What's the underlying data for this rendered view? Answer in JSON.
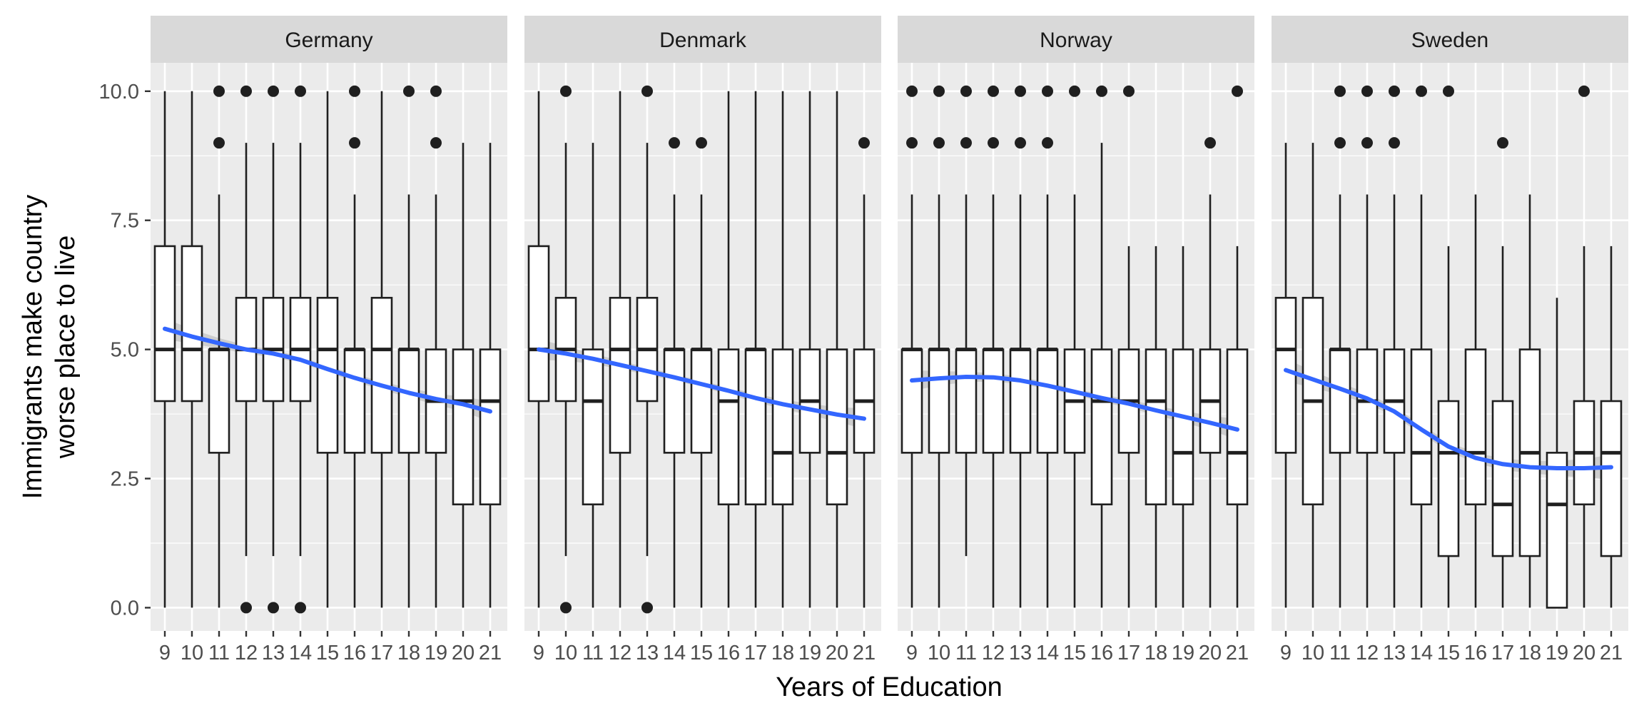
{
  "chart_data": {
    "type": "box",
    "xlabel": "Years of Education",
    "ylabel": [
      "Immigrants make country",
      "worse place to live"
    ],
    "ylim": [
      -0.45,
      10.55
    ],
    "y_ticks": [
      "0.0",
      "2.5",
      "5.0",
      "7.5",
      "10.0"
    ],
    "y_tick_values": [
      0,
      2.5,
      5,
      7.5,
      10
    ],
    "categories": [
      "9",
      "10",
      "11",
      "12",
      "13",
      "14",
      "15",
      "16",
      "17",
      "18",
      "19",
      "20",
      "21"
    ],
    "grid": true,
    "colors": {
      "panel": "#ebebeb",
      "strip": "#d9d9d9",
      "grid": "#ffffff",
      "box": "#1f1f1f",
      "trend": "#3366ff",
      "band": "#c8c8c8"
    },
    "panels": [
      {
        "name": "Germany",
        "boxes": [
          {
            "x": "9",
            "min": 0,
            "q1": 4,
            "median": 5,
            "q3": 7,
            "max": 10,
            "outliers": []
          },
          {
            "x": "10",
            "min": 0,
            "q1": 4,
            "median": 5,
            "q3": 7,
            "max": 10,
            "outliers": []
          },
          {
            "x": "11",
            "min": 0,
            "q1": 3,
            "median": 5,
            "q3": 5,
            "max": 8,
            "outliers": [
              9,
              10
            ]
          },
          {
            "x": "12",
            "min": 1,
            "q1": 4,
            "median": 5,
            "q3": 6,
            "max": 9,
            "outliers": [
              0,
              10
            ]
          },
          {
            "x": "13",
            "min": 1,
            "q1": 4,
            "median": 5,
            "q3": 6,
            "max": 9,
            "outliers": [
              0,
              10
            ]
          },
          {
            "x": "14",
            "min": 1,
            "q1": 4,
            "median": 5,
            "q3": 6,
            "max": 9,
            "outliers": [
              0,
              10
            ]
          },
          {
            "x": "15",
            "min": 0,
            "q1": 3,
            "median": 5,
            "q3": 6,
            "max": 10,
            "outliers": []
          },
          {
            "x": "16",
            "min": 0,
            "q1": 3,
            "median": 5,
            "q3": 5,
            "max": 8,
            "outliers": [
              9,
              10
            ]
          },
          {
            "x": "17",
            "min": 0,
            "q1": 3,
            "median": 5,
            "q3": 6,
            "max": 10,
            "outliers": []
          },
          {
            "x": "18",
            "min": 0,
            "q1": 3,
            "median": 5,
            "q3": 5,
            "max": 8,
            "outliers": [
              10
            ]
          },
          {
            "x": "19",
            "min": 0,
            "q1": 3,
            "median": 4,
            "q3": 5,
            "max": 8,
            "outliers": [
              9,
              10
            ]
          },
          {
            "x": "20",
            "min": 0,
            "q1": 2,
            "median": 4,
            "q3": 5,
            "max": 9,
            "outliers": []
          },
          {
            "x": "21",
            "min": 0,
            "q1": 2,
            "median": 4,
            "q3": 5,
            "max": 9,
            "outliers": []
          }
        ],
        "trend": [
          [
            9,
            5.4
          ],
          [
            10,
            5.25
          ],
          [
            11,
            5.12
          ],
          [
            12,
            5.0
          ],
          [
            13,
            4.92
          ],
          [
            14,
            4.8
          ],
          [
            15,
            4.62
          ],
          [
            16,
            4.45
          ],
          [
            17,
            4.3
          ],
          [
            18,
            4.16
          ],
          [
            19,
            4.04
          ],
          [
            20,
            3.94
          ],
          [
            21,
            3.8
          ]
        ],
        "band": [
          0.2,
          0.14,
          0.1,
          0.08,
          0.07,
          0.06,
          0.06,
          0.07,
          0.08,
          0.09,
          0.11,
          0.14,
          0.2
        ]
      },
      {
        "name": "Denmark",
        "boxes": [
          {
            "x": "9",
            "min": 0,
            "q1": 4,
            "median": 5,
            "q3": 7,
            "max": 10,
            "outliers": []
          },
          {
            "x": "10",
            "min": 1,
            "q1": 4,
            "median": 5,
            "q3": 6,
            "max": 9,
            "outliers": [
              0,
              10
            ]
          },
          {
            "x": "11",
            "min": 0,
            "q1": 2,
            "median": 4,
            "q3": 5,
            "max": 9,
            "outliers": []
          },
          {
            "x": "12",
            "min": 0,
            "q1": 3,
            "median": 5,
            "q3": 6,
            "max": 10,
            "outliers": []
          },
          {
            "x": "13",
            "min": 1,
            "q1": 4,
            "median": 5,
            "q3": 6,
            "max": 9,
            "outliers": [
              0,
              10
            ]
          },
          {
            "x": "14",
            "min": 0,
            "q1": 3,
            "median": 5,
            "q3": 5,
            "max": 8,
            "outliers": [
              9
            ]
          },
          {
            "x": "15",
            "min": 0,
            "q1": 3,
            "median": 5,
            "q3": 5,
            "max": 8,
            "outliers": [
              9
            ]
          },
          {
            "x": "16",
            "min": 0,
            "q1": 2,
            "median": 4,
            "q3": 5,
            "max": 10,
            "outliers": []
          },
          {
            "x": "17",
            "min": 0,
            "q1": 2,
            "median": 5,
            "q3": 5,
            "max": 10,
            "outliers": []
          },
          {
            "x": "18",
            "min": 0,
            "q1": 2,
            "median": 3,
            "q3": 5,
            "max": 10,
            "outliers": []
          },
          {
            "x": "19",
            "min": 0,
            "q1": 3,
            "median": 4,
            "q3": 5,
            "max": 10,
            "outliers": []
          },
          {
            "x": "20",
            "min": 0,
            "q1": 2,
            "median": 3,
            "q3": 5,
            "max": 10,
            "outliers": []
          },
          {
            "x": "21",
            "min": 0,
            "q1": 3,
            "median": 4,
            "q3": 5,
            "max": 8,
            "outliers": [
              9
            ]
          }
        ],
        "trend": [
          [
            9,
            5.0
          ],
          [
            10,
            4.92
          ],
          [
            11,
            4.82
          ],
          [
            12,
            4.7
          ],
          [
            13,
            4.58
          ],
          [
            14,
            4.46
          ],
          [
            15,
            4.33
          ],
          [
            16,
            4.2
          ],
          [
            17,
            4.06
          ],
          [
            18,
            3.94
          ],
          [
            19,
            3.84
          ],
          [
            20,
            3.74
          ],
          [
            21,
            3.66
          ]
        ],
        "band": [
          0.2,
          0.14,
          0.1,
          0.08,
          0.07,
          0.06,
          0.06,
          0.07,
          0.08,
          0.09,
          0.11,
          0.14,
          0.2
        ]
      },
      {
        "name": "Norway",
        "boxes": [
          {
            "x": "9",
            "min": 0,
            "q1": 3,
            "median": 5,
            "q3": 5,
            "max": 8,
            "outliers": [
              9,
              10
            ]
          },
          {
            "x": "10",
            "min": 0,
            "q1": 3,
            "median": 5,
            "q3": 5,
            "max": 8,
            "outliers": [
              9,
              10
            ]
          },
          {
            "x": "11",
            "min": 1,
            "q1": 3,
            "median": 5,
            "q3": 5,
            "max": 8,
            "outliers": [
              9,
              10
            ]
          },
          {
            "x": "12",
            "min": 0,
            "q1": 3,
            "median": 5,
            "q3": 5,
            "max": 8,
            "outliers": [
              9,
              10
            ]
          },
          {
            "x": "13",
            "min": 0,
            "q1": 3,
            "median": 5,
            "q3": 5,
            "max": 8,
            "outliers": [
              9,
              10
            ]
          },
          {
            "x": "14",
            "min": 0,
            "q1": 3,
            "median": 5,
            "q3": 5,
            "max": 8,
            "outliers": [
              9,
              10
            ]
          },
          {
            "x": "15",
            "min": 0,
            "q1": 3,
            "median": 4,
            "q3": 5,
            "max": 8,
            "outliers": [
              10
            ]
          },
          {
            "x": "16",
            "min": 0,
            "q1": 2,
            "median": 4,
            "q3": 5,
            "max": 9,
            "outliers": [
              10
            ]
          },
          {
            "x": "17",
            "min": 0,
            "q1": 3,
            "median": 4,
            "q3": 5,
            "max": 7,
            "outliers": [
              10
            ]
          },
          {
            "x": "18",
            "min": 0,
            "q1": 2,
            "median": 4,
            "q3": 5,
            "max": 7,
            "outliers": []
          },
          {
            "x": "19",
            "min": 0,
            "q1": 2,
            "median": 3,
            "q3": 5,
            "max": 7,
            "outliers": []
          },
          {
            "x": "20",
            "min": 0,
            "q1": 3,
            "median": 4,
            "q3": 5,
            "max": 8,
            "outliers": [
              9
            ]
          },
          {
            "x": "21",
            "min": 0,
            "q1": 2,
            "median": 3,
            "q3": 5,
            "max": 7,
            "outliers": [
              10
            ]
          }
        ],
        "trend": [
          [
            9,
            4.4
          ],
          [
            10,
            4.44
          ],
          [
            11,
            4.47
          ],
          [
            12,
            4.46
          ],
          [
            13,
            4.4
          ],
          [
            14,
            4.3
          ],
          [
            15,
            4.18
          ],
          [
            16,
            4.06
          ],
          [
            17,
            3.95
          ],
          [
            18,
            3.82
          ],
          [
            19,
            3.7
          ],
          [
            20,
            3.58
          ],
          [
            21,
            3.45
          ]
        ],
        "band": [
          0.2,
          0.14,
          0.1,
          0.08,
          0.07,
          0.06,
          0.06,
          0.07,
          0.08,
          0.09,
          0.11,
          0.14,
          0.2
        ]
      },
      {
        "name": "Sweden",
        "boxes": [
          {
            "x": "9",
            "min": 0,
            "q1": 3,
            "median": 5,
            "q3": 6,
            "max": 9,
            "outliers": []
          },
          {
            "x": "10",
            "min": 0,
            "q1": 2,
            "median": 4,
            "q3": 6,
            "max": 9,
            "outliers": []
          },
          {
            "x": "11",
            "min": 0,
            "q1": 3,
            "median": 5,
            "q3": 5,
            "max": 8,
            "outliers": [
              9,
              10
            ]
          },
          {
            "x": "12",
            "min": 0,
            "q1": 3,
            "median": 4,
            "q3": 5,
            "max": 8,
            "outliers": [
              9,
              10
            ]
          },
          {
            "x": "13",
            "min": 0,
            "q1": 3,
            "median": 4,
            "q3": 5,
            "max": 8,
            "outliers": [
              9,
              10
            ]
          },
          {
            "x": "14",
            "min": 0,
            "q1": 2,
            "median": 3,
            "q3": 5,
            "max": 8,
            "outliers": [
              10
            ]
          },
          {
            "x": "15",
            "min": 0,
            "q1": 1,
            "median": 3,
            "q3": 4,
            "max": 7,
            "outliers": [
              10
            ]
          },
          {
            "x": "16",
            "min": 0,
            "q1": 2,
            "median": 3,
            "q3": 5,
            "max": 8,
            "outliers": []
          },
          {
            "x": "17",
            "min": 0,
            "q1": 1,
            "median": 2,
            "q3": 4,
            "max": 7,
            "outliers": [
              9
            ]
          },
          {
            "x": "18",
            "min": 0,
            "q1": 1,
            "median": 3,
            "q3": 5,
            "max": 8,
            "outliers": []
          },
          {
            "x": "19",
            "min": 0,
            "q1": 0,
            "median": 2,
            "q3": 3,
            "max": 6,
            "outliers": []
          },
          {
            "x": "20",
            "min": 0,
            "q1": 2,
            "median": 3,
            "q3": 4,
            "max": 7,
            "outliers": [
              10
            ]
          },
          {
            "x": "21",
            "min": 0,
            "q1": 1,
            "median": 3,
            "q3": 4,
            "max": 7,
            "outliers": []
          }
        ],
        "trend": [
          [
            9,
            4.6
          ],
          [
            10,
            4.42
          ],
          [
            11,
            4.24
          ],
          [
            12,
            4.05
          ],
          [
            13,
            3.8
          ],
          [
            14,
            3.45
          ],
          [
            15,
            3.12
          ],
          [
            16,
            2.9
          ],
          [
            17,
            2.78
          ],
          [
            18,
            2.72
          ],
          [
            19,
            2.7
          ],
          [
            20,
            2.7
          ],
          [
            21,
            2.72
          ]
        ],
        "band": [
          0.22,
          0.16,
          0.12,
          0.1,
          0.09,
          0.09,
          0.09,
          0.1,
          0.11,
          0.12,
          0.14,
          0.18,
          0.24
        ]
      }
    ]
  }
}
